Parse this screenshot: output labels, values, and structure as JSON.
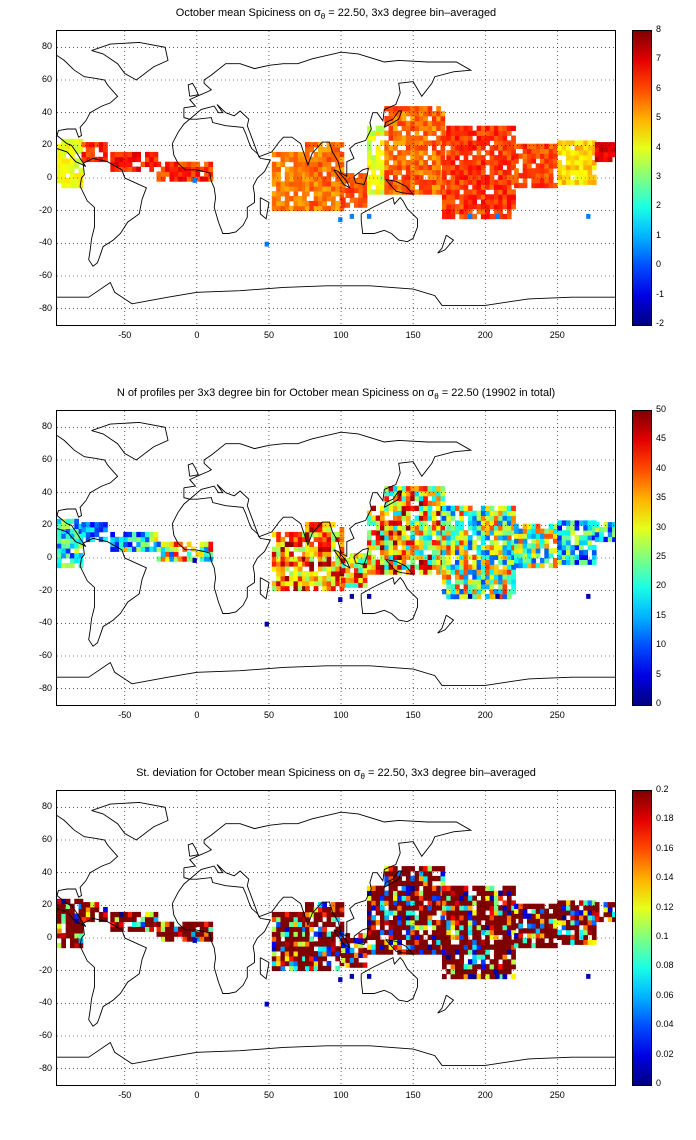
{
  "panels": [
    {
      "title_pre": "October mean Spiciness on σ",
      "title_sub": "θ",
      "title_post": " = 22.50, 3x3 degree bin–averaged",
      "metric": "spice",
      "colorbar_ticks": [
        "8",
        "7",
        "6",
        "5",
        "4",
        "3",
        "2",
        "1",
        "0",
        "-1",
        "-2"
      ],
      "colorbar_range": [
        -2,
        8
      ]
    },
    {
      "title_pre": "N of profiles per 3x3 degree bin for October mean Spiciness on σ",
      "title_sub": "θ",
      "title_post": " = 22.50 (19902 in total)",
      "metric": "count",
      "colorbar_ticks": [
        "50",
        "45",
        "40",
        "35",
        "30",
        "25",
        "20",
        "15",
        "10",
        "5",
        "0"
      ],
      "colorbar_range": [
        0,
        50
      ]
    },
    {
      "title_pre": "St. deviation for October mean Spiciness on σ",
      "title_sub": "θ",
      "title_post": " = 22.50, 3x3 degree bin–averaged",
      "metric": "std",
      "colorbar_ticks": [
        "0.2",
        "0.18",
        "0.16",
        "0.14",
        "0.12",
        "0.1",
        "0.08",
        "0.06",
        "0.04",
        "0.02",
        "0"
      ],
      "colorbar_range": [
        0,
        0.2
      ]
    }
  ],
  "axes": {
    "y_ticks": [
      "80",
      "60",
      "40",
      "20",
      "0",
      "-20",
      "-40",
      "-60",
      "-80"
    ],
    "x_ticks": [
      "-50",
      "0",
      "50",
      "100",
      "150",
      "200",
      "250"
    ],
    "lon_range": [
      -97,
      290
    ],
    "lat_range": [
      -90,
      90
    ],
    "grid": "dotted"
  },
  "colormap": "jet"
}
